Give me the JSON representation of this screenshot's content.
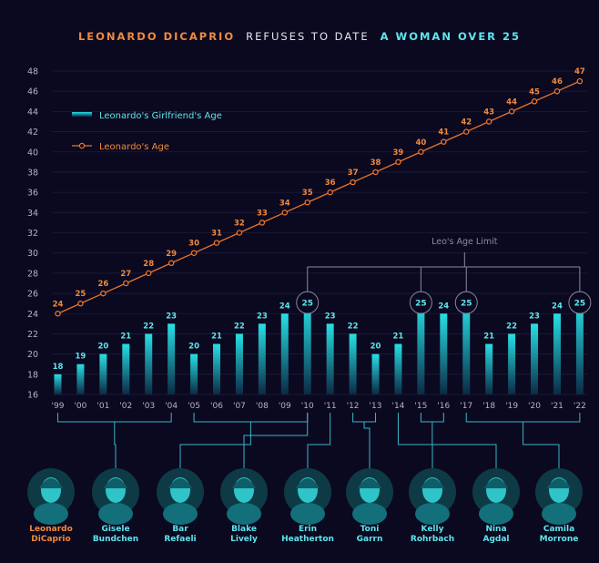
{
  "chart_data": {
    "type": "bar",
    "title": {
      "part1": "LEONARDO DICAPRIO",
      "part2": "REFUSES TO DATE",
      "part3": "A WOMAN OVER 25"
    },
    "categories": [
      "'99",
      "'00",
      "'01",
      "'02",
      "'03",
      "'04",
      "'05",
      "'06",
      "'07",
      "'08",
      "'09",
      "'10",
      "'11",
      "'12",
      "'13",
      "'14",
      "'15",
      "'16",
      "'17",
      "'18",
      "'19",
      "'20",
      "'21",
      "'22"
    ],
    "series": [
      {
        "name": "Leonardo's Girlfriend's Age",
        "type": "bar",
        "values": [
          18,
          19,
          20,
          21,
          22,
          23,
          20,
          21,
          22,
          23,
          24,
          25,
          23,
          22,
          20,
          21,
          25,
          24,
          25,
          21,
          22,
          23,
          24,
          25
        ]
      },
      {
        "name": "Leonardo's Age",
        "type": "line",
        "values": [
          24,
          25,
          26,
          27,
          28,
          29,
          30,
          31,
          32,
          33,
          34,
          35,
          36,
          37,
          38,
          39,
          40,
          41,
          42,
          43,
          44,
          45,
          46,
          47
        ]
      }
    ],
    "ylim": [
      16,
      48
    ],
    "yticks": [
      16,
      18,
      20,
      22,
      24,
      26,
      28,
      30,
      32,
      34,
      36,
      38,
      40,
      42,
      44,
      46,
      48
    ],
    "grid": true,
    "annotation": "Leo's Age Limit",
    "limit_value": 25,
    "girlfriends": [
      {
        "name": "Gisele Bundchen",
        "line1": "Gisele",
        "line2": "Bundchen",
        "start": 0,
        "end": 5
      },
      {
        "name": "Bar Refaeli",
        "line1": "Bar",
        "line2": "Refaeli",
        "start": 6,
        "end": 11
      },
      {
        "name": "Blake Lively",
        "line1": "Blake",
        "line2": "Lively",
        "start": 11,
        "end": 11
      },
      {
        "name": "Erin Heatherton",
        "line1": "Erin",
        "line2": "Heatherton",
        "start": 12,
        "end": 12
      },
      {
        "name": "Toni Garrn",
        "line1": "Toni",
        "line2": "Garrn",
        "start": 13,
        "end": 14
      },
      {
        "name": "Kelly Rohrbach",
        "line1": "Kelly",
        "line2": "Rohrbach",
        "start": 15,
        "end": 15
      },
      {
        "name": "Nina Agdal",
        "line1": "Nina",
        "line2": "Agdal",
        "start": 16,
        "end": 17
      },
      {
        "name": "Camila Morrone",
        "line1": "Camila",
        "line2": "Morrone",
        "start": 18,
        "end": 23
      }
    ],
    "leo": {
      "line1": "Leonardo",
      "line2": "DiCaprio"
    }
  },
  "colors": {
    "background": "#0b0920",
    "bar_top": "#22dbe0",
    "bar_bottom": "#0b2a44",
    "line": "#e8732a",
    "cyan_text": "#5ee6ee",
    "orange_text": "#f08a3c",
    "axis_text": "#b4b2c6",
    "grid": "#1e1c3c",
    "bracket": "#3ab5c5",
    "limit": "#8a8aa2"
  }
}
